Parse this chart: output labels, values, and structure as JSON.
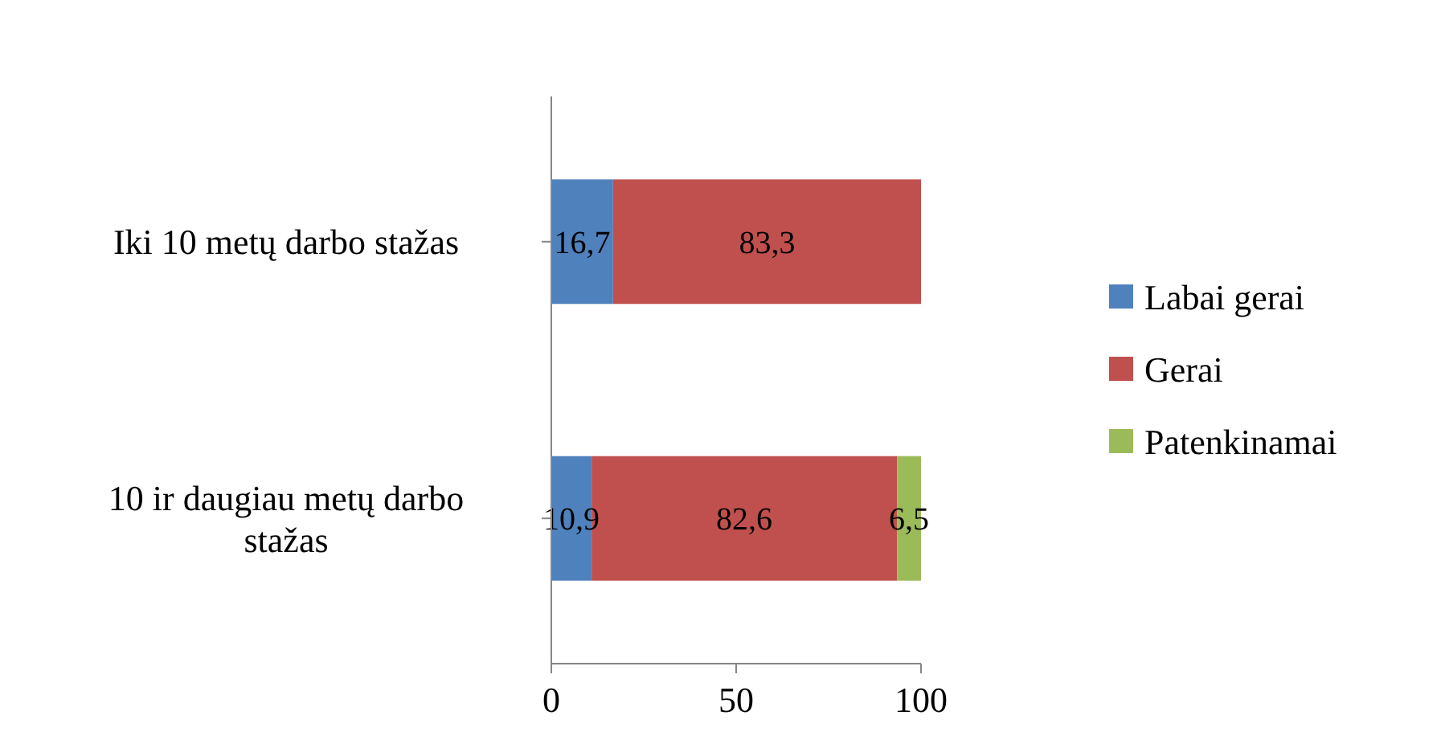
{
  "chart_data": {
    "type": "bar",
    "orientation": "horizontal",
    "stacked": true,
    "categories": [
      "Iki 10 metų darbo stažas",
      "10 ir daugiau metų darbo stažas"
    ],
    "series": [
      {
        "name": "Labai gerai",
        "color": "#4f81bd",
        "values": [
          16.7,
          10.9
        ],
        "value_labels": [
          "16,7",
          "10,9"
        ]
      },
      {
        "name": "Gerai",
        "color": "#c0504d",
        "values": [
          83.3,
          82.6
        ],
        "value_labels": [
          "83,3",
          "82,6"
        ]
      },
      {
        "name": "Patenkinamai",
        "color": "#9bbb59",
        "values": [
          null,
          6.5
        ],
        "value_labels": [
          null,
          "6,5"
        ]
      }
    ],
    "xlim": [
      0,
      100
    ],
    "xticks": [
      0,
      50,
      100
    ],
    "legend": "right",
    "grid": false
  }
}
